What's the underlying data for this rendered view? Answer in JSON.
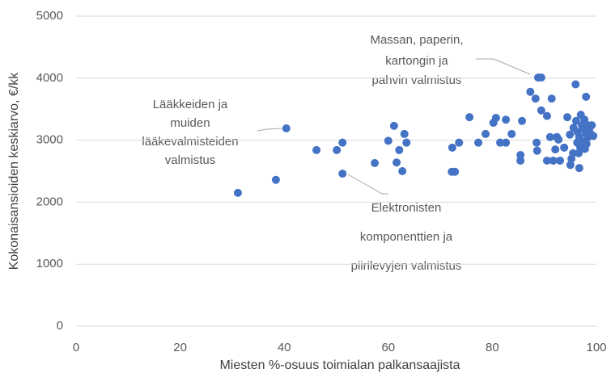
{
  "chart_data": {
    "type": "scatter",
    "x_label": "Miesten %-osuus toimialan palkansaajista",
    "y_label": "Kokonaisansioiden keskiarvo, €/kk",
    "color": "#4472c4",
    "grid": true,
    "xlim": [
      0,
      100
    ],
    "xticks": [
      0,
      20,
      40,
      60,
      80,
      100
    ],
    "ylim": [
      0,
      5000
    ],
    "yticks": [
      0,
      1000,
      2000,
      3000,
      4000,
      5000
    ],
    "x": [
      31.1,
      38.4,
      40.4,
      46.2,
      50.1,
      51.2,
      51.2,
      57.4,
      60.0,
      61.1,
      61.6,
      62.1,
      62.7,
      63.1,
      63.5,
      72.2,
      72.8,
      72.3,
      73.6,
      75.6,
      77.3,
      78.7,
      80.2,
      80.7,
      81.5,
      82.6,
      82.6,
      83.7,
      85.4,
      85.4,
      85.7,
      87.3,
      88.3,
      88.8,
      89.4,
      88.5,
      88.6,
      89.4,
      90.5,
      90.5,
      91.1,
      91.4,
      91.7,
      92.1,
      92.4,
      92.7,
      93.0,
      93.8,
      94.4,
      94.9,
      95.0,
      95.2,
      95.5,
      95.6,
      96.0,
      96.1,
      96.3,
      96.4,
      96.6,
      96.7,
      96.7,
      96.9,
      97.0,
      97.2,
      97.4,
      97.5,
      97.7,
      97.8,
      98.0,
      98.0,
      98.1,
      98.3,
      98.4,
      98.6,
      98.8,
      99.1,
      99.4
    ],
    "values": [
      2150,
      2360,
      3190,
      2840,
      2840,
      2960,
      2460,
      2630,
      2990,
      3230,
      2640,
      2840,
      2500,
      3100,
      2960,
      2490,
      2490,
      2880,
      2960,
      3370,
      2960,
      3100,
      3280,
      3360,
      2960,
      2960,
      3330,
      3100,
      2670,
      2760,
      3310,
      3780,
      3670,
      4010,
      4010,
      2960,
      2830,
      3480,
      3390,
      2670,
      3050,
      3670,
      2670,
      2850,
      3050,
      3010,
      2670,
      2880,
      3370,
      3090,
      2600,
      2700,
      2790,
      3200,
      3900,
      3310,
      2960,
      3130,
      2790,
      2550,
      3050,
      2880,
      3410,
      3240,
      2980,
      3180,
      3330,
      2860,
      3700,
      3110,
      2940,
      3240,
      3050,
      3180,
      3110,
      3240,
      3070
    ],
    "annotations": [
      [
        "Massan, paperin,",
        "kartongin ja",
        "pahvin valmistus"
      ],
      [
        "Lääkkeiden ja",
        "muiden",
        "lääkevalmisteiden",
        "valmistus"
      ],
      [
        "Elektronisten",
        "komponenttien ja",
        "piirilevyjen valmistus"
      ]
    ]
  }
}
